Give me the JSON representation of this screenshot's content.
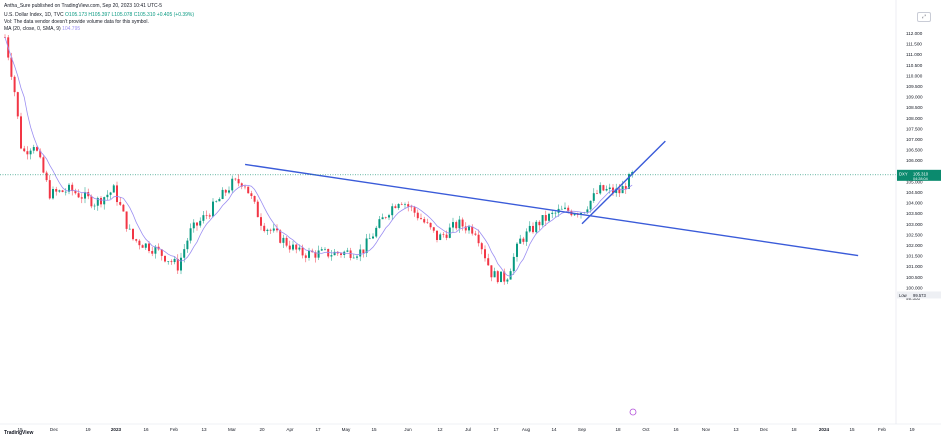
{
  "header": {
    "published_line": "Antha_Sure published on TradingView.com, Sep 20, 2023 10:41 UTC-5",
    "series_line": "U.S. Dollar Index, 1D, TVC",
    "series_values": "O105.173 H105.397 L105.078 C105.310 +0.405 (+0.39%)",
    "note_line": "Vol: The data vendor doesn't provide volume data for this symbol.",
    "ma_line": "MA (20, close, 0, SMA, 9)",
    "ma_value": "104.795"
  },
  "footer": {
    "logo_text": "TradingView"
  },
  "controls": {
    "zoom_label": ""
  },
  "chart_data": {
    "type": "candlestick",
    "instrument": "U.S. Dollar Index",
    "timeframe": "1D",
    "y_ticks": [
      "112.000",
      "111.500",
      "111.000",
      "110.500",
      "110.000",
      "109.500",
      "109.000",
      "108.500",
      "108.000",
      "107.500",
      "107.000",
      "106.500",
      "106.000",
      "105.500",
      "105.000",
      "104.500",
      "104.000",
      "103.500",
      "103.000",
      "102.500",
      "102.000",
      "101.500",
      "101.000",
      "100.500",
      "100.000",
      "99.500"
    ],
    "x_ticks": [
      "15",
      "Dec",
      "19",
      "2023",
      "16",
      "Feb",
      "13",
      "Mar",
      "20",
      "Apr",
      "17",
      "May",
      "15",
      "Jun",
      "12",
      "Jul",
      "17",
      "Aug",
      "14",
      "Sep",
      "18",
      "Oct",
      "16",
      "Nov",
      "13",
      "Dec",
      "18",
      "2024",
      "15",
      "Feb",
      "19"
    ],
    "price_labels": {
      "high_label": "High",
      "high_value": "113.674",
      "current_label": "DXY",
      "current_value": "105.310",
      "current_sub": "04:28:04",
      "low_label": "Low",
      "low_value": "99.573"
    },
    "colors": {
      "up": "#089981",
      "down": "#f23645",
      "ma": "#9c8ff2",
      "trendline": "#3a5bd9",
      "current": "#0b8a6e"
    },
    "ma_visible": true,
    "candles_description": "Daily DXY candles from Nov 2022 to Sep 2023",
    "trendlines": [
      {
        "name": "descending resistance",
        "from": {
          "date": "2023-03-08",
          "value": 105.8
        },
        "to": {
          "date": "2024-01-20",
          "value": 101.5
        }
      },
      {
        "name": "ascending support",
        "from": {
          "date": "2023-09-01",
          "value": 103.0
        },
        "to": {
          "date": "2023-10-12",
          "value": 106.9
        }
      }
    ]
  }
}
